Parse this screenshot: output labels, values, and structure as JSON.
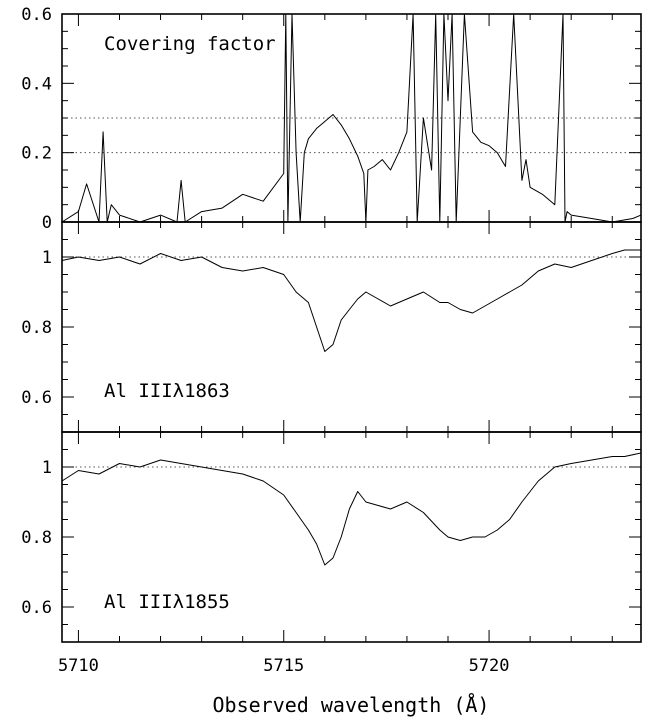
{
  "xlabel": "Observed wavelength (Å)",
  "chart_data": [
    {
      "type": "line",
      "label": "Covering factor",
      "xlim": [
        5709.6,
        5723.7
      ],
      "ylim": [
        0,
        0.6
      ],
      "yticks": [
        0,
        0.2,
        0.4,
        0.6
      ],
      "ytick_labels": [
        "0",
        "0.2",
        "0.4",
        "0.6"
      ],
      "reference_lines": [
        0.2,
        0.3
      ],
      "x": [
        5709.6,
        5710.0,
        5710.2,
        5710.5,
        5710.6,
        5710.7,
        5710.8,
        5711.0,
        5711.5,
        5712.0,
        5712.4,
        5712.5,
        5712.6,
        5713.0,
        5713.5,
        5714.0,
        5714.5,
        5715.0,
        5715.05,
        5715.1,
        5715.2,
        5715.3,
        5715.4,
        5715.5,
        5715.6,
        5715.8,
        5716.0,
        5716.2,
        5716.4,
        5716.6,
        5716.8,
        5716.95,
        5717.0,
        5717.05,
        5717.2,
        5717.4,
        5717.6,
        5717.8,
        5718.0,
        5718.15,
        5718.25,
        5718.4,
        5718.6,
        5718.7,
        5718.8,
        5718.9,
        5719.0,
        5719.1,
        5719.2,
        5719.4,
        5719.6,
        5719.8,
        5720.0,
        5720.2,
        5720.4,
        5720.6,
        5720.8,
        5720.9,
        5721.0,
        5721.3,
        5721.6,
        5721.8,
        5721.85,
        5721.9,
        5722.0,
        5722.5,
        5723.0,
        5723.5,
        5723.7
      ],
      "y": [
        0.0,
        0.03,
        0.11,
        0.0,
        0.26,
        0.0,
        0.05,
        0.02,
        0.0,
        0.02,
        0.0,
        0.12,
        0.0,
        0.03,
        0.04,
        0.08,
        0.06,
        0.14,
        0.6,
        0.0,
        0.6,
        0.2,
        0.0,
        0.2,
        0.24,
        0.27,
        0.29,
        0.31,
        0.28,
        0.24,
        0.19,
        0.14,
        0.0,
        0.15,
        0.16,
        0.18,
        0.15,
        0.2,
        0.26,
        0.6,
        0.0,
        0.3,
        0.15,
        0.6,
        0.0,
        0.6,
        0.35,
        0.6,
        0.0,
        0.6,
        0.26,
        0.23,
        0.22,
        0.2,
        0.16,
        0.6,
        0.12,
        0.18,
        0.1,
        0.08,
        0.05,
        0.6,
        0.0,
        0.03,
        0.02,
        0.01,
        0.0,
        0.01,
        0.02
      ]
    },
    {
      "type": "line",
      "label": "Al IIIλ1863",
      "xlim": [
        5709.6,
        5723.7
      ],
      "ylim": [
        0.5,
        1.1
      ],
      "yticks": [
        0.6,
        0.8,
        1.0
      ],
      "ytick_labels": [
        "0.6",
        "0.8",
        "1"
      ],
      "reference_lines": [
        1.0
      ],
      "x": [
        5709.6,
        5710.0,
        5710.5,
        5711.0,
        5711.5,
        5712.0,
        5712.5,
        5713.0,
        5713.5,
        5714.0,
        5714.5,
        5715.0,
        5715.3,
        5715.6,
        5715.8,
        5716.0,
        5716.2,
        5716.4,
        5716.6,
        5716.8,
        5717.0,
        5717.3,
        5717.6,
        5718.0,
        5718.4,
        5718.8,
        5719.0,
        5719.3,
        5719.6,
        5719.9,
        5720.2,
        5720.5,
        5720.8,
        5721.2,
        5721.6,
        5722.0,
        5722.5,
        5723.0,
        5723.3,
        5723.7
      ],
      "y": [
        0.99,
        1.0,
        0.99,
        1.0,
        0.98,
        1.01,
        0.99,
        1.0,
        0.97,
        0.96,
        0.97,
        0.95,
        0.9,
        0.87,
        0.8,
        0.73,
        0.75,
        0.82,
        0.85,
        0.88,
        0.9,
        0.88,
        0.86,
        0.88,
        0.9,
        0.87,
        0.87,
        0.85,
        0.84,
        0.86,
        0.88,
        0.9,
        0.92,
        0.96,
        0.98,
        0.97,
        0.99,
        1.01,
        1.02,
        1.02
      ]
    },
    {
      "type": "line",
      "label": "Al IIIλ1855",
      "xlim": [
        5709.6,
        5723.7
      ],
      "ylim": [
        0.5,
        1.1
      ],
      "yticks": [
        0.6,
        0.8,
        1.0
      ],
      "ytick_labels": [
        "0.6",
        "0.8",
        "1"
      ],
      "reference_lines": [
        1.0
      ],
      "x": [
        5709.6,
        5710.0,
        5710.5,
        5711.0,
        5711.5,
        5712.0,
        5712.5,
        5713.0,
        5713.5,
        5714.0,
        5714.5,
        5715.0,
        5715.3,
        5715.6,
        5715.8,
        5716.0,
        5716.2,
        5716.4,
        5716.6,
        5716.8,
        5717.0,
        5717.3,
        5717.6,
        5718.0,
        5718.4,
        5718.8,
        5719.0,
        5719.3,
        5719.6,
        5719.9,
        5720.2,
        5720.5,
        5720.8,
        5721.2,
        5721.6,
        5722.0,
        5722.5,
        5723.0,
        5723.3,
        5723.7
      ],
      "y": [
        0.96,
        0.99,
        0.98,
        1.01,
        1.0,
        1.02,
        1.01,
        1.0,
        0.99,
        0.98,
        0.96,
        0.92,
        0.87,
        0.82,
        0.78,
        0.72,
        0.74,
        0.8,
        0.88,
        0.93,
        0.9,
        0.89,
        0.88,
        0.9,
        0.87,
        0.82,
        0.8,
        0.79,
        0.8,
        0.8,
        0.82,
        0.85,
        0.9,
        0.96,
        1.0,
        1.01,
        1.02,
        1.03,
        1.03,
        1.04
      ]
    }
  ],
  "xaxis": {
    "ticks": [
      5710,
      5715,
      5720
    ],
    "tick_labels": [
      "5710",
      "5715",
      "5720"
    ],
    "minor_step": 1
  }
}
